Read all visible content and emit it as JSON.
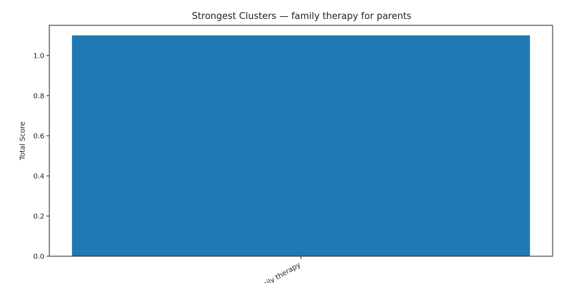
{
  "chart_data": {
    "type": "bar",
    "title": "Strongest Clusters — family therapy for parents",
    "xlabel": "",
    "ylabel": "Total Score",
    "categories": [
      "family therapy"
    ],
    "values": [
      1.1
    ],
    "ylim": [
      0,
      1.15
    ],
    "yticks": [
      0.0,
      0.2,
      0.4,
      0.6,
      0.8,
      1.0
    ],
    "ytick_labels": [
      "0.0",
      "0.2",
      "0.4",
      "0.6",
      "0.8",
      "1.0"
    ],
    "grid": false,
    "bar_color": "#1f77b4"
  }
}
